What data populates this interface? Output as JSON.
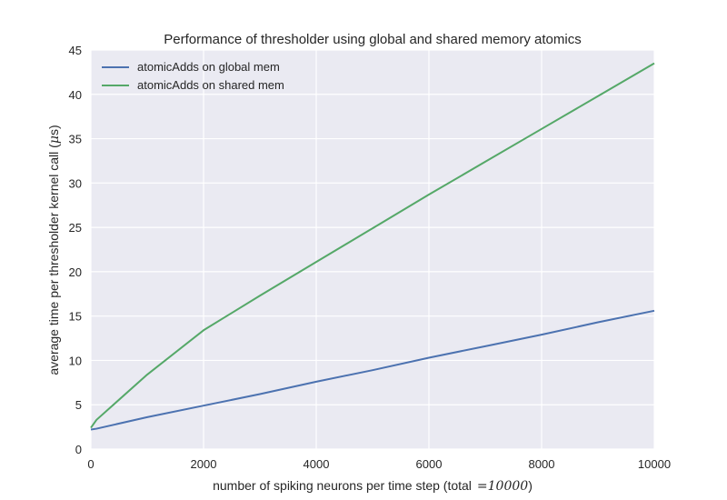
{
  "chart_data": {
    "type": "line",
    "title": "Performance of thresholder using global and shared memory atomics",
    "xlabel": {
      "prefix": "number of spiking neurons per time step (total",
      "math": "=10000",
      "suffix": ")"
    },
    "ylabel": {
      "prefix": "average time per thresholder kernel call (",
      "math_mu": "μ",
      "math_s": "s",
      "suffix": ")"
    },
    "xlim": [
      0,
      10000
    ],
    "ylim": [
      0,
      45
    ],
    "xticks": [
      0,
      2000,
      4000,
      6000,
      8000,
      10000
    ],
    "xtick_labels": [
      "0",
      "2000",
      "4000",
      "6000",
      "8000",
      "10000"
    ],
    "yticks": [
      0,
      5,
      10,
      15,
      20,
      25,
      30,
      35,
      40,
      45
    ],
    "ytick_labels": [
      "0",
      "5",
      "10",
      "15",
      "20",
      "25",
      "30",
      "35",
      "40",
      "45"
    ],
    "grid": true,
    "legend_position": "top-left",
    "colors": {
      "background": "#eaeaf2",
      "grid": "#ffffff",
      "global": "#4c72b0",
      "shared": "#55a868"
    },
    "series": [
      {
        "name": "atomicAdds on global mem",
        "color": "#4c72b0",
        "x": [
          0,
          100,
          1000,
          2000,
          3000,
          4000,
          5000,
          6000,
          7000,
          8000,
          9000,
          10000
        ],
        "y": [
          2.2,
          2.3,
          3.6,
          4.9,
          6.2,
          7.6,
          8.9,
          10.3,
          11.6,
          12.9,
          14.3,
          15.6
        ]
      },
      {
        "name": "atomicAdds on shared mem",
        "color": "#55a868",
        "x": [
          0,
          100,
          1000,
          2000,
          3000,
          4000,
          5000,
          6000,
          7000,
          8000,
          9000,
          10000
        ],
        "y": [
          2.4,
          3.3,
          8.4,
          13.4,
          17.3,
          21.1,
          24.9,
          28.7,
          32.4,
          36.1,
          39.8,
          43.5
        ]
      }
    ]
  }
}
